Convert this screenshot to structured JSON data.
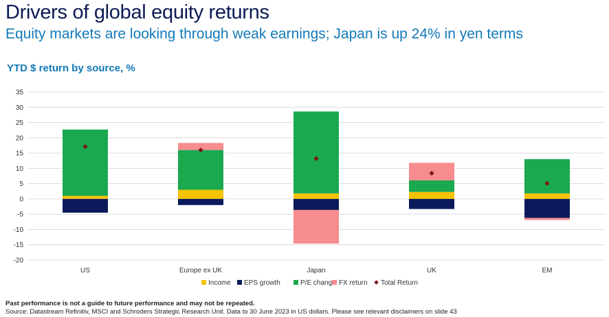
{
  "header": {
    "title": "Drivers of global equity returns",
    "subtitle": "Equity markets are looking through weak earnings; Japan is up 24% in yen terms",
    "chart_label": "YTD $ return by source, %"
  },
  "footer": {
    "disclaimer": "Past performance is not a guide to future performance and may not be repeated.",
    "source": "Source: Datastream Refinitiv, MSCI and Schroders Strategic Research Unit. Data to 30 June 2023 in US dollars. Please see relevant disclaimers on slide 43"
  },
  "colors": {
    "income": "#f5c200",
    "eps_growth": "#0a1a5c",
    "pe_change": "#1aa94e",
    "fx_return": "#f78c8f",
    "total_return": "#7a1518"
  },
  "chart_data": {
    "type": "bar",
    "stacked": true,
    "title": "YTD $ return by source, %",
    "xlabel": "",
    "ylabel": "",
    "ylim": [
      -20,
      35
    ],
    "yticks": [
      35,
      30,
      25,
      20,
      15,
      10,
      5,
      0,
      -5,
      -10,
      -15,
      -20
    ],
    "grid": true,
    "legend_position": "bottom",
    "categories": [
      "US",
      "Europe ex UK",
      "Japan",
      "UK",
      "EM"
    ],
    "series": [
      {
        "key": "income",
        "name": "Income",
        "values": [
          1.0,
          3.0,
          1.8,
          2.3,
          1.8
        ]
      },
      {
        "key": "eps_growth",
        "name": "EPS growth",
        "values": [
          -4.5,
          -2.0,
          -3.6,
          -3.3,
          -6.2
        ]
      },
      {
        "key": "pe_change",
        "name": "P/E change",
        "values": [
          21.7,
          13.0,
          26.8,
          3.8,
          11.2
        ]
      },
      {
        "key": "fx_return",
        "name": "FX return",
        "values": [
          0,
          2.3,
          -11.0,
          5.7,
          -0.7
        ]
      }
    ],
    "total_return": {
      "key": "total_return",
      "name": "Total Return",
      "values": [
        17.1,
        16.0,
        13.2,
        8.4,
        5.1
      ]
    }
  }
}
